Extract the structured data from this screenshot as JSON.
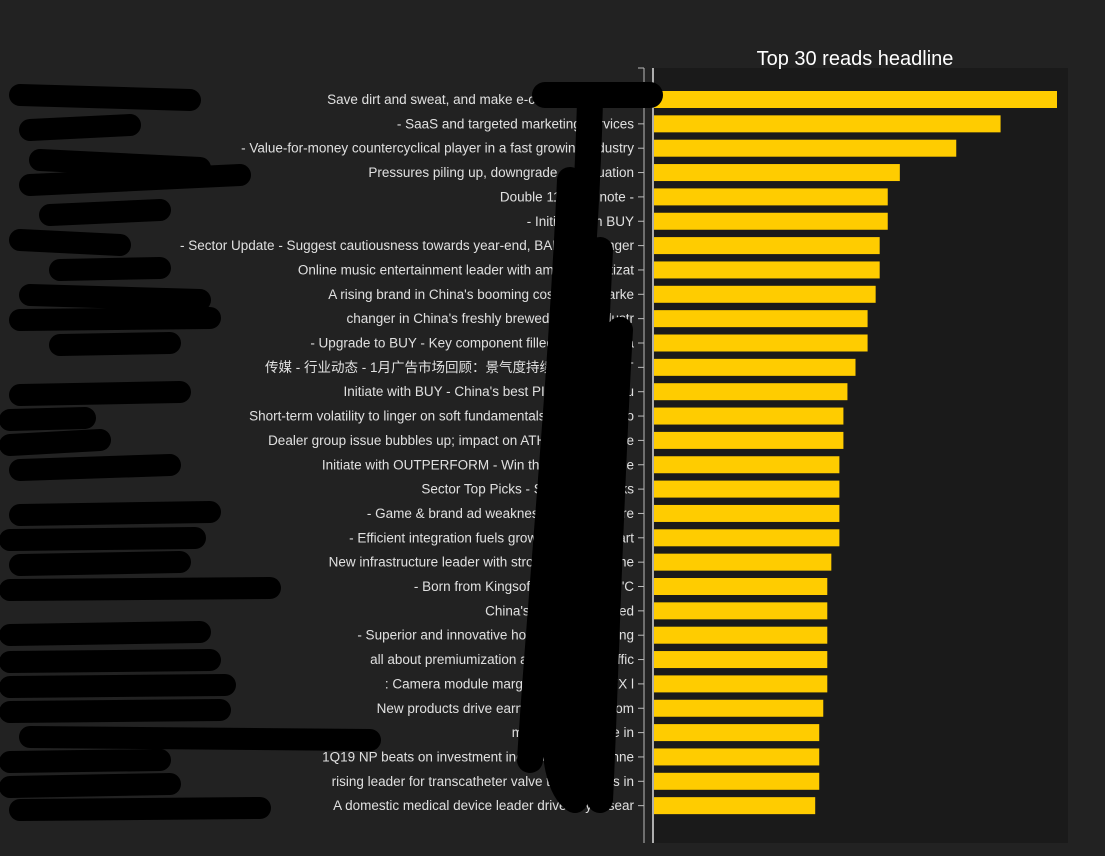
{
  "chart_data": {
    "type": "bar",
    "orientation": "horizontal",
    "title": "Top 30 reads headline",
    "xlabel": "",
    "ylabel": "",
    "grid": false,
    "legend": "none",
    "bar_color": "#FFCC00",
    "plot_background": "#1a1a1a",
    "page_background": "#222222",
    "text_color": "#e0e0e0",
    "xlim": [
      0,
      100
    ],
    "categories": [
      "Save dirt and sweat, and make e-commerce simple",
      "- SaaS and targeted marketing services",
      "- Value-for-money countercyclical player in a fast growing industry",
      "Pressures piling up, downgrade on valuation",
      "Double 11 quick note -",
      "- Initiate with BUY",
      "- Sector Update - Suggest cautiousness towards year-end, BABA still longer",
      "Online music entertainment leader with ample monetizat",
      "A rising brand in China's booming cosmetics marke",
      "changer in China's freshly brewed coffee industr",
      "- Upgrade to BUY - Key component filled for the IP gia",
      "传媒 - 行业动态 - 1月广告市场回顾：景气度持续低迷，梯媒广",
      "Initiate with BUY - China's best PIMM manufactu",
      "Short-term volatility to linger on soft fundamentals, regulatory wo",
      "Dealer group issue bubbles up; impact on ATHM awaits more",
      "Initiate with OUTPERFORM - Win the battle, win the",
      "Sector Top Picks - Sector Top Picks",
      "- Game & brand ad weakness to weigh on re",
      "- Efficient integration fuels growth; fast AFV part",
      "New infrastructure leader with strong growth mome",
      "- Born from Kingsoft, riding on the \"C",
      "China's better monetized",
      "- Superior and innovative hot pot giant offering",
      "all about premiumization and enhanced effic",
      ": Camera module margin decline and FX l",
      "New products drive earnings recovery from",
      "margin to improve in",
      "1Q19 NP beats on investment income; Stock Conne",
      "rising leader for transcatheter valve therapeutics in",
      "A domestic medical device leader driven by resear"
    ],
    "values": [
      100,
      86,
      75,
      61,
      58,
      58,
      56,
      56,
      55,
      53,
      53,
      50,
      48,
      47,
      47,
      46,
      46,
      46,
      46,
      44,
      43,
      43,
      43,
      43,
      43,
      42,
      41,
      41,
      41,
      40
    ]
  }
}
